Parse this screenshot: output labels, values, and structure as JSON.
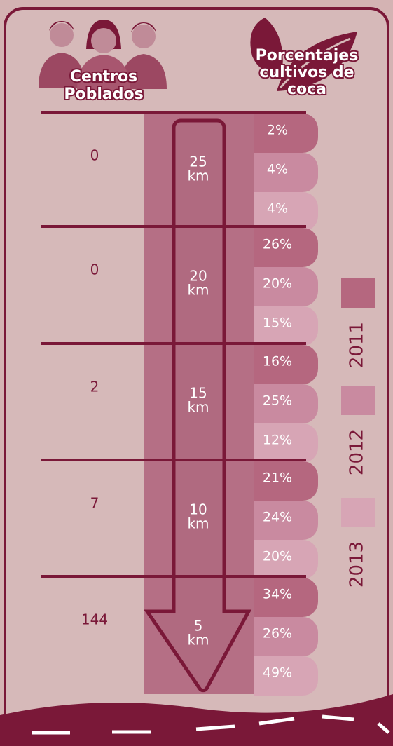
{
  "header": {
    "left_title": [
      "Centros",
      "Poblados"
    ],
    "right_title": [
      "Porcentajes",
      "cultivos de",
      "coca"
    ]
  },
  "rows": [
    {
      "centros": "0",
      "distance": "25",
      "unit": "km",
      "percentages": [
        "2%",
        "4%",
        "4%"
      ]
    },
    {
      "centros": "0",
      "distance": "20",
      "unit": "km",
      "percentages": [
        "26%",
        "20%",
        "15%"
      ]
    },
    {
      "centros": "2",
      "distance": "15",
      "unit": "km",
      "percentages": [
        "16%",
        "25%",
        "12%"
      ]
    },
    {
      "centros": "7",
      "distance": "10",
      "unit": "km",
      "percentages": [
        "21%",
        "24%",
        "20%"
      ]
    },
    {
      "centros": "144",
      "distance": "5",
      "unit": "km",
      "percentages": [
        "34%",
        "26%",
        "49%"
      ]
    }
  ],
  "legend": [
    "2011",
    "2012",
    "2013"
  ]
}
